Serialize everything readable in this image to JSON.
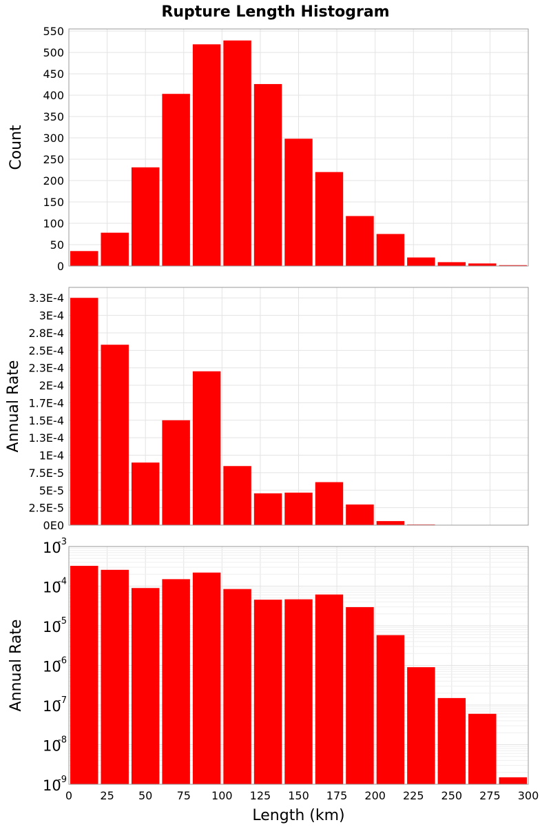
{
  "chart_data": [
    {
      "type": "bar",
      "title": "Rupture Length Histogram",
      "ylabel": "Count",
      "xlabel": "",
      "x": [
        10,
        30,
        50,
        70,
        90,
        110,
        130,
        150,
        170,
        190,
        210,
        230,
        250,
        270,
        290
      ],
      "bin_width": 20,
      "values": [
        35,
        78,
        231,
        403,
        519,
        528,
        426,
        298,
        220,
        117,
        75,
        20,
        9,
        6,
        2
      ],
      "xlim": [
        0,
        300
      ],
      "ylim": [
        0,
        555
      ],
      "yticks": [
        0,
        50,
        100,
        150,
        200,
        250,
        300,
        350,
        400,
        450,
        500,
        550
      ],
      "ytick_labels": [
        "0",
        "50",
        "100",
        "150",
        "200",
        "250",
        "300",
        "350",
        "400",
        "450",
        "500",
        "550"
      ],
      "grid": true,
      "color": "#ff0000"
    },
    {
      "type": "bar",
      "ylabel": "Annual Rate",
      "xlabel": "",
      "x": [
        10,
        30,
        50,
        70,
        90,
        110,
        130,
        150,
        170,
        190,
        210,
        230,
        250,
        270,
        290
      ],
      "bin_width": 20,
      "values": [
        0.000325,
        0.000258,
        8.95e-05,
        0.00015,
        0.00022,
        8.45e-05,
        4.55e-05,
        4.65e-05,
        6.15e-05,
        2.95e-05,
        5.8e-06,
        9e-07,
        1.5e-07,
        6e-08,
        1.5e-09
      ],
      "xlim": [
        0,
        300
      ],
      "ylim": [
        0,
        0.00034
      ],
      "yticks": [
        0,
        2.5e-05,
        5e-05,
        7.5e-05,
        0.0001,
        0.000125,
        0.00015,
        0.000175,
        0.0002,
        0.000225,
        0.00025,
        0.000275,
        0.0003,
        0.000325
      ],
      "ytick_labels": [
        "0E0",
        "2.5E-5",
        "5E-5",
        "7.5E-5",
        "1E-4",
        "1.3E-4",
        "1.5E-4",
        "1.7E-4",
        "2E-4",
        "2.3E-4",
        "2.5E-4",
        "2.8E-4",
        "3E-4",
        "3.3E-4"
      ],
      "grid": true,
      "color": "#ff0000"
    },
    {
      "type": "bar",
      "ylabel": "Annual Rate",
      "xlabel": "Length (km)",
      "x": [
        10,
        30,
        50,
        70,
        90,
        110,
        130,
        150,
        170,
        190,
        210,
        230,
        250,
        270,
        290
      ],
      "bin_width": 20,
      "values": [
        0.000325,
        0.000258,
        8.95e-05,
        0.00015,
        0.00022,
        8.45e-05,
        4.55e-05,
        4.65e-05,
        6.15e-05,
        2.95e-05,
        5.8e-06,
        9e-07,
        1.5e-07,
        6e-08,
        1.5e-09
      ],
      "xlim": [
        0,
        300
      ],
      "ylim": [
        1e-09,
        0.001
      ],
      "yscale": "log",
      "yticks": [
        -9,
        -8,
        -7,
        -6,
        -5,
        -4,
        -3
      ],
      "ytick_base": "10",
      "ytick_exponents": [
        "-9",
        "-8",
        "-7",
        "-6",
        "-5",
        "-4",
        "-3"
      ],
      "xticks": [
        0,
        25,
        50,
        75,
        100,
        125,
        150,
        175,
        200,
        225,
        250,
        275,
        300
      ],
      "xtick_labels": [
        "0",
        "25",
        "50",
        "75",
        "100",
        "125",
        "150",
        "175",
        "200",
        "225",
        "250",
        "275",
        "300"
      ],
      "grid": true,
      "color": "#ff0000"
    }
  ]
}
